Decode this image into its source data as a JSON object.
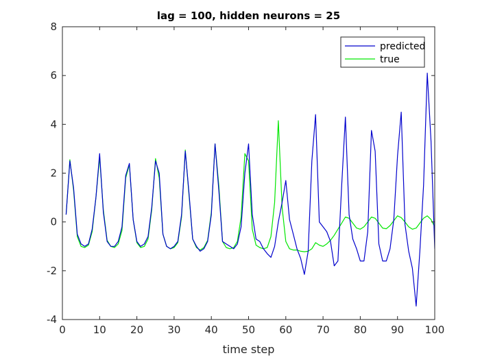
{
  "chart_data": {
    "type": "line",
    "title": "lag = 100, hidden neurons = 25",
    "xlabel": "time step",
    "ylabel": "",
    "xlim": [
      0,
      100
    ],
    "ylim": [
      -4,
      8
    ],
    "xticks": [
      0,
      10,
      20,
      30,
      40,
      50,
      60,
      70,
      80,
      90,
      100
    ],
    "yticks": [
      -4,
      -2,
      0,
      2,
      4,
      6,
      8
    ],
    "grid": false,
    "legend_position": "top-right",
    "series": [
      {
        "name": "predicted",
        "color": "#0000cc",
        "x": [
          1,
          2,
          3,
          4,
          5,
          6,
          7,
          8,
          9,
          10,
          11,
          12,
          13,
          14,
          15,
          16,
          17,
          18,
          19,
          20,
          21,
          22,
          23,
          24,
          25,
          26,
          27,
          28,
          29,
          30,
          31,
          32,
          33,
          34,
          35,
          36,
          37,
          38,
          39,
          40,
          41,
          42,
          43,
          44,
          45,
          46,
          47,
          48,
          49,
          50,
          51,
          52,
          53,
          54,
          55,
          56,
          57,
          58,
          59,
          60,
          61,
          62,
          63,
          64,
          65,
          66,
          67,
          68,
          69,
          70,
          71,
          72,
          73,
          74,
          75,
          76,
          77,
          78,
          79,
          80,
          81,
          82,
          83,
          84,
          85,
          86,
          87,
          88,
          89,
          90,
          91,
          92,
          93,
          94,
          95,
          96,
          97,
          98,
          99,
          100
        ],
        "y": [
          0.3,
          2.5,
          1.4,
          -0.5,
          -0.9,
          -1.0,
          -0.9,
          -0.3,
          1.0,
          2.8,
          0.4,
          -0.8,
          -1.0,
          -1.0,
          -0.8,
          -0.2,
          1.9,
          2.4,
          0.1,
          -0.8,
          -1.0,
          -0.9,
          -0.6,
          0.6,
          2.5,
          2.0,
          -0.5,
          -1.0,
          -1.1,
          -1.0,
          -0.8,
          0.3,
          2.9,
          1.2,
          -0.7,
          -1.0,
          -1.2,
          -1.1,
          -0.8,
          0.3,
          3.2,
          1.3,
          -0.8,
          -0.9,
          -1.0,
          -1.1,
          -0.9,
          -0.2,
          2.0,
          3.2,
          0.3,
          -0.7,
          -0.8,
          -1.1,
          -1.3,
          -1.45,
          -1.0,
          0.0,
          0.8,
          1.7,
          0.1,
          -0.5,
          -1.1,
          -1.5,
          -2.15,
          -1.2,
          2.5,
          4.4,
          0.0,
          -0.2,
          -0.4,
          -0.8,
          -1.8,
          -1.6,
          1.5,
          4.3,
          0.3,
          -0.7,
          -1.1,
          -1.6,
          -1.6,
          -0.4,
          3.75,
          2.9,
          -0.9,
          -1.6,
          -1.6,
          -1.1,
          0.1,
          2.7,
          4.5,
          -0.1,
          -1.2,
          -1.9,
          -3.45,
          -1.2,
          1.5,
          6.1,
          3.3,
          -1.1
        ]
      },
      {
        "name": "true",
        "color": "#00e600",
        "x": [
          1,
          2,
          3,
          4,
          5,
          6,
          7,
          8,
          9,
          10,
          11,
          12,
          13,
          14,
          15,
          16,
          17,
          18,
          19,
          20,
          21,
          22,
          23,
          24,
          25,
          26,
          27,
          28,
          29,
          30,
          31,
          32,
          33,
          34,
          35,
          36,
          37,
          38,
          39,
          40,
          41,
          42,
          43,
          44,
          45,
          46,
          47,
          48,
          49,
          50,
          51,
          52,
          53,
          54,
          55,
          56,
          57,
          58,
          59,
          60,
          61,
          62,
          63,
          64,
          65,
          66,
          67,
          68,
          69,
          70,
          71,
          72,
          73,
          74,
          75,
          76,
          77,
          78,
          79,
          80,
          81,
          82,
          83,
          84,
          85,
          86,
          87,
          88,
          89,
          90,
          91,
          92,
          93,
          94,
          95,
          96,
          97,
          98,
          99,
          100
        ],
        "y": [
          0.3,
          2.55,
          1.3,
          -0.6,
          -1.0,
          -1.05,
          -0.95,
          -0.4,
          1.0,
          2.65,
          0.5,
          -0.75,
          -1.0,
          -1.05,
          -0.9,
          -0.35,
          1.8,
          2.35,
          0.1,
          -0.85,
          -1.05,
          -1.0,
          -0.7,
          0.5,
          2.6,
          1.8,
          -0.5,
          -1.0,
          -1.1,
          -1.05,
          -0.85,
          0.2,
          2.95,
          1.1,
          -0.7,
          -1.05,
          -1.15,
          -1.05,
          -0.75,
          0.4,
          3.2,
          1.5,
          -0.8,
          -1.05,
          -1.1,
          -1.05,
          -0.8,
          0.2,
          2.8,
          2.5,
          -0.3,
          -0.95,
          -1.05,
          -1.1,
          -1.05,
          -0.6,
          0.8,
          4.15,
          0.6,
          -0.8,
          -1.1,
          -1.15,
          -1.15,
          -1.2,
          -1.22,
          -1.2,
          -1.1,
          -0.85,
          -0.95,
          -1.0,
          -0.9,
          -0.75,
          -0.55,
          -0.3,
          -0.05,
          0.2,
          0.15,
          -0.05,
          -0.25,
          -0.3,
          -0.2,
          0.0,
          0.2,
          0.15,
          -0.05,
          -0.25,
          -0.28,
          -0.15,
          0.05,
          0.25,
          0.18,
          0.0,
          -0.2,
          -0.3,
          -0.25,
          -0.05,
          0.15,
          0.25,
          0.1,
          -0.2
        ]
      }
    ]
  }
}
